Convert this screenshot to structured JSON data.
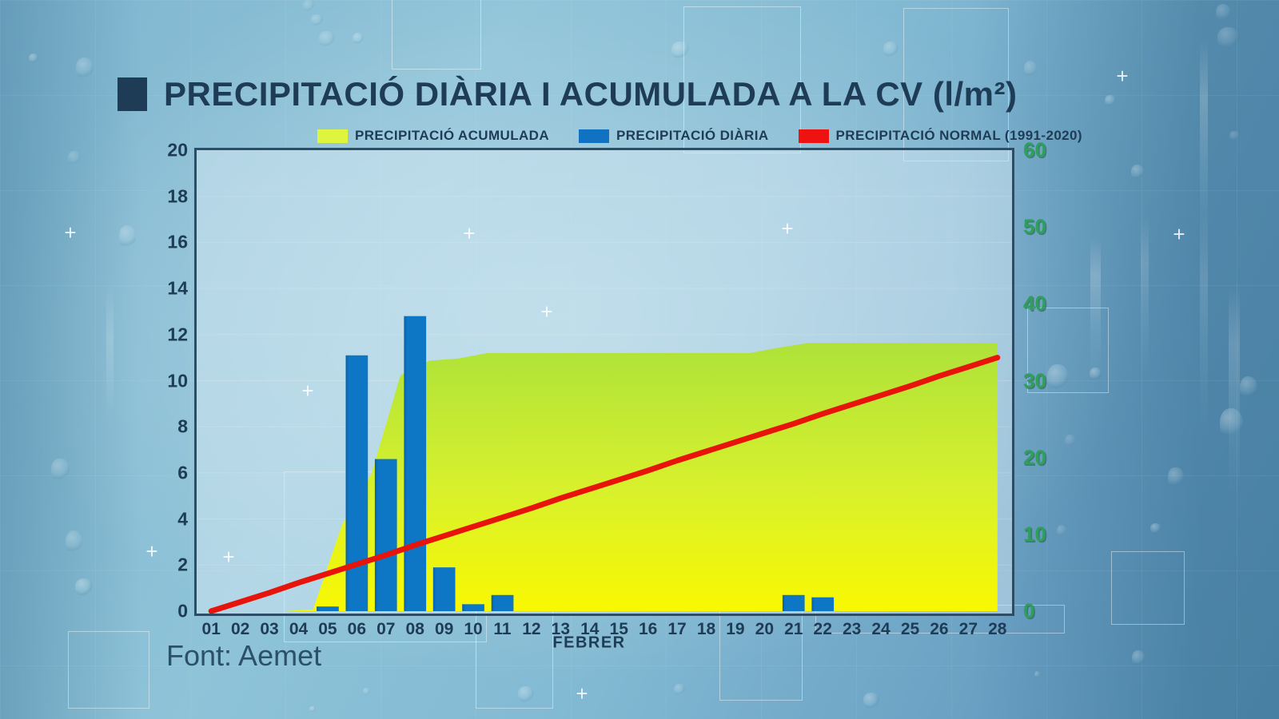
{
  "header": {
    "title": "PRECIPITACIÓ DIÀRIA I ACUMULADA A LA CV (l/m²)"
  },
  "legend": {
    "items": [
      {
        "label": "PRECIPITACIÓ ACUMULADA",
        "color": "#dff43c"
      },
      {
        "label": "PRECIPITACIÓ DIÀRIA",
        "color": "#1272c2"
      },
      {
        "label": "PRECIPITACIÓ NORMAL (1991-2020)",
        "color": "#ee1310"
      }
    ]
  },
  "footer": {
    "source": "Font: Aemet"
  },
  "chart_data": {
    "type": "mixed",
    "title": "PRECIPITACIÓ DIÀRIA I ACUMULADA A LA CV (l/m²)",
    "x_label": "FEBRER",
    "categories": [
      "01",
      "02",
      "03",
      "04",
      "05",
      "06",
      "07",
      "08",
      "09",
      "10",
      "11",
      "12",
      "13",
      "14",
      "15",
      "16",
      "17",
      "18",
      "19",
      "20",
      "21",
      "22",
      "23",
      "24",
      "25",
      "26",
      "27",
      "28"
    ],
    "left_axis": {
      "min": 0,
      "max": 20,
      "ticks": [
        0,
        2,
        4,
        6,
        8,
        10,
        12,
        14,
        16,
        18,
        20
      ],
      "color": "#1e3c55"
    },
    "right_axis": {
      "min": 0,
      "max": 60,
      "ticks": [
        0,
        10,
        20,
        30,
        40,
        50,
        60
      ],
      "color": "#2f9f5e"
    },
    "grid": true,
    "legend_position": "top",
    "series": [
      {
        "name": "PRECIPITACIÓ DIÀRIA",
        "type": "bar",
        "axis": "left",
        "color": "#0d76c5",
        "values": [
          0,
          0,
          0,
          0,
          0.2,
          11.1,
          6.6,
          12.8,
          1.9,
          0.3,
          0.7,
          0,
          0,
          0,
          0,
          0,
          0,
          0,
          0,
          0,
          0.7,
          0.6,
          0,
          0,
          0,
          0,
          0,
          0
        ]
      },
      {
        "name": "PRECIPITACIÓ ACUMULADA",
        "type": "area",
        "axis": "right",
        "color_top": "#aee23a",
        "color_bottom": "#f9f801",
        "values": [
          0,
          0,
          0,
          0,
          0.2,
          11.3,
          17.9,
          30.7,
          32.6,
          32.9,
          33.6,
          33.6,
          33.6,
          33.6,
          33.6,
          33.6,
          33.6,
          33.6,
          33.6,
          33.6,
          34.3,
          34.9,
          34.9,
          34.9,
          34.9,
          34.9,
          34.9,
          34.9
        ]
      },
      {
        "name": "PRECIPITACIÓ NORMAL (1991-2020)",
        "type": "line",
        "axis": "right",
        "color": "#e8140c",
        "values": [
          0,
          1.2,
          2.4,
          3.7,
          4.9,
          6.1,
          7.3,
          8.6,
          9.8,
          11,
          12.2,
          13.4,
          14.7,
          15.9,
          17.1,
          18.3,
          19.6,
          20.8,
          22,
          23.2,
          24.4,
          25.7,
          26.9,
          28.1,
          29.3,
          30.6,
          31.8,
          33
        ]
      }
    ]
  }
}
